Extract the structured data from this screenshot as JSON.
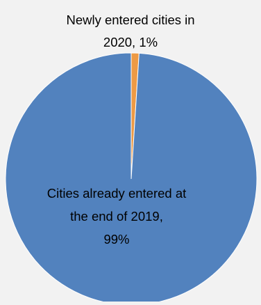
{
  "chart_data": {
    "type": "pie",
    "slices": [
      {
        "label_lines": [
          "Newly entered cities in",
          "2020, 1%"
        ],
        "value": 1,
        "color": "#ed9a45"
      },
      {
        "label_lines": [
          "Cities already entered at",
          "the end of 2019,",
          "99%"
        ],
        "value": 99,
        "color": "#5282be"
      }
    ]
  }
}
